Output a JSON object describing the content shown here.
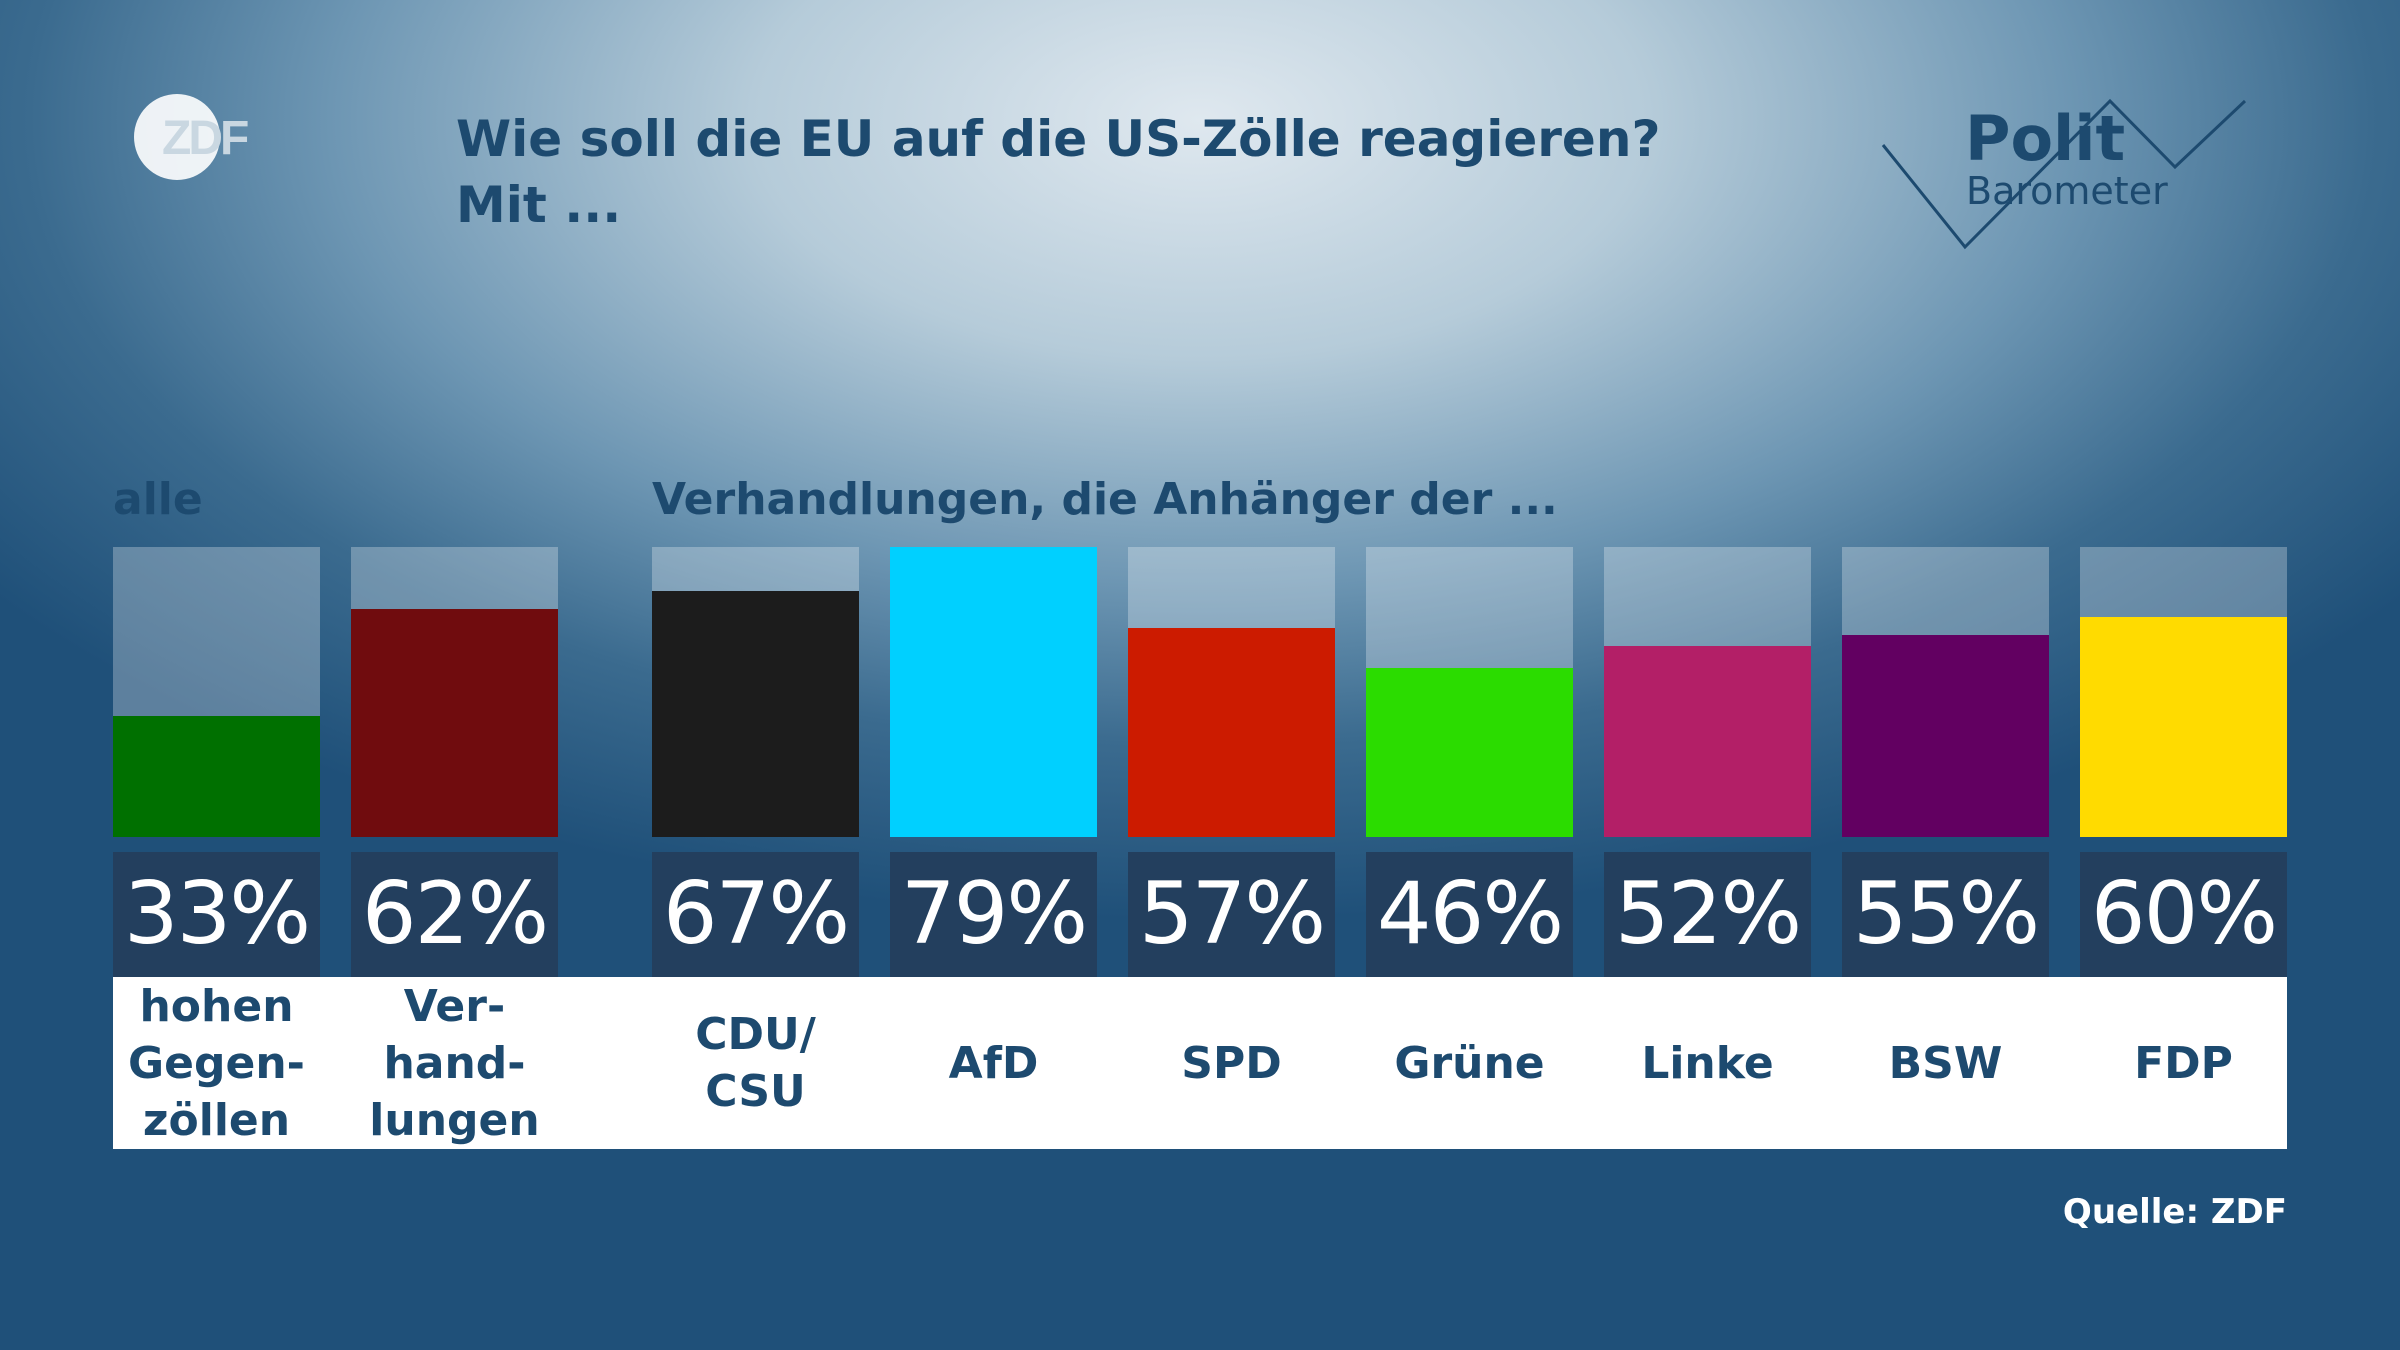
{
  "header": {
    "title_line1": "Wie soll die EU auf die US-Zölle reagieren?",
    "title_line2": "Mit ...",
    "brand_logo": "ZDF",
    "show_logo_top": "Polit",
    "show_logo_bottom": "Barometer"
  },
  "sections": {
    "all_label": "alle",
    "parties_label": "Verhandlungen, die Anhänger der ..."
  },
  "footer": {
    "source": "Quelle: ZDF"
  },
  "chart_data": {
    "type": "bar",
    "categories": [
      "hohen\nGegen-\nzöllen",
      "Ver-\nhand-\nlungen",
      "CDU/\nCSU",
      "AfD",
      "SPD",
      "Grüne",
      "Linke",
      "BSW",
      "FDP"
    ],
    "values": [
      33,
      62,
      67,
      79,
      57,
      46,
      52,
      55,
      60
    ],
    "value_labels": [
      "33%",
      "62%",
      "67%",
      "79%",
      "57%",
      "46%",
      "52%",
      "55%",
      "60%"
    ],
    "colors": [
      "#007000",
      "#700c0e",
      "#1c1c1c",
      "#00d0ff",
      "#cc1b00",
      "#2bdc00",
      "#b31f67",
      "#620061",
      "#ffdb00"
    ],
    "ylim": [
      0,
      79
    ],
    "groups": [
      {
        "name": "alle",
        "indices": [
          0,
          1
        ]
      },
      {
        "name": "Verhandlungen, die Anhänger der ...",
        "indices": [
          2,
          3,
          4,
          5,
          6,
          7,
          8
        ]
      }
    ]
  }
}
